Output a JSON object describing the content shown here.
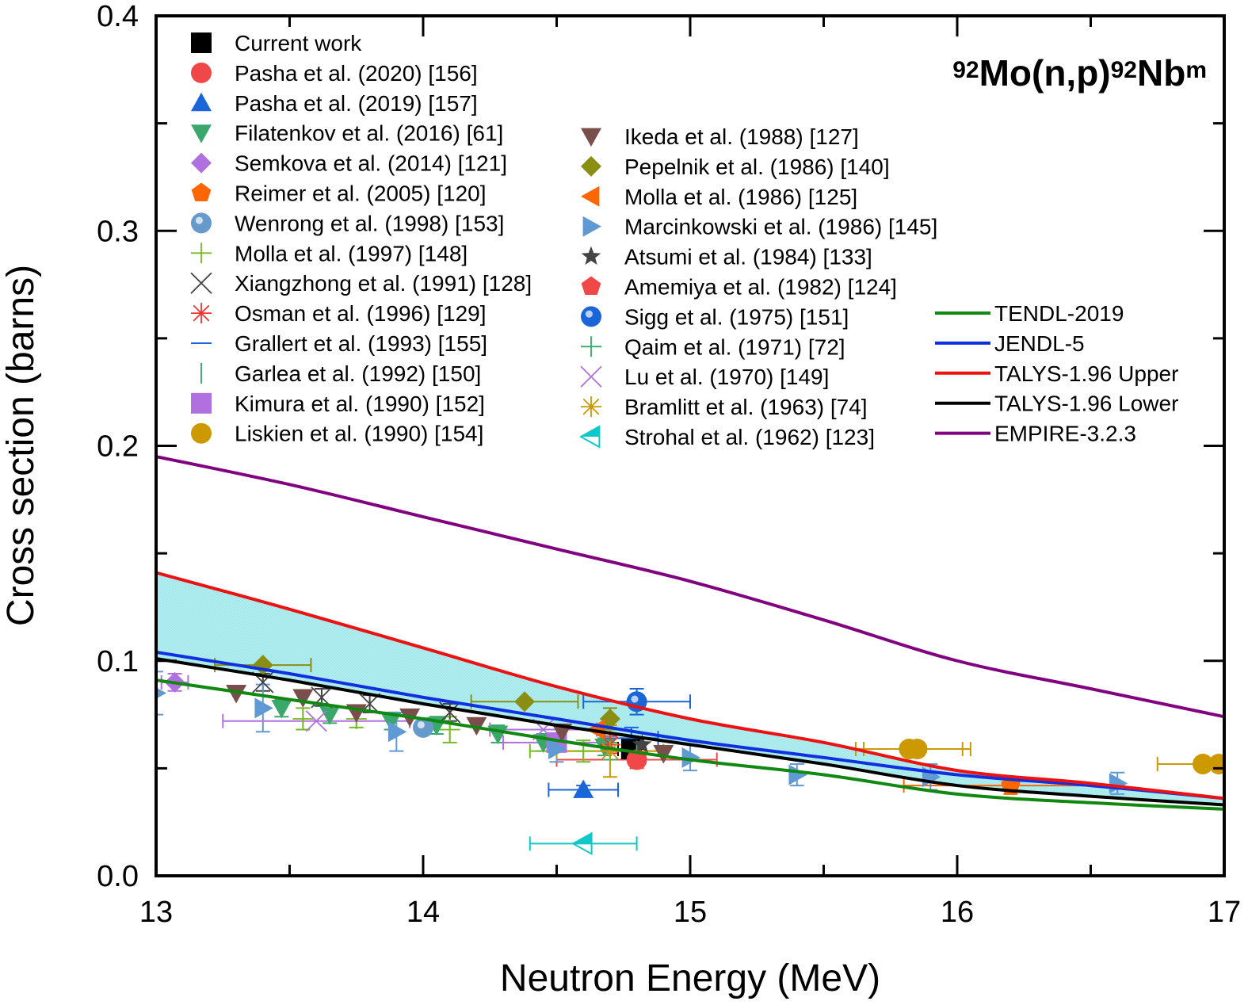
{
  "chart_data": {
    "type": "scatter",
    "title": "92Mo(n,p)92Nbm",
    "title_parts": [
      {
        "text": "92",
        "sup": true
      },
      {
        "text": "Mo(n,p)",
        "sup": false
      },
      {
        "text": "92",
        "sup": true
      },
      {
        "text": "Nb",
        "sup": false
      },
      {
        "text": "m",
        "sup": true
      }
    ],
    "xlabel": "Neutron Energy (MeV)",
    "ylabel": "Cross section (barns)",
    "xlim": [
      13,
      17
    ],
    "ylim": [
      0.0,
      0.4
    ],
    "xticks": [
      13,
      14,
      15,
      16,
      17
    ],
    "xtick_labels": [
      "13",
      "14",
      "15",
      "16",
      "17"
    ],
    "yticks": [
      0.0,
      0.1,
      0.2,
      0.3,
      0.4
    ],
    "ytick_labels": [
      "0.0",
      "0.1",
      "0.2",
      "0.3",
      "0.4"
    ],
    "grid": false,
    "legend_placement": "top-left (experimental), right (evaluations)",
    "band": {
      "name": "TALYS-1.96 uncertainty band",
      "lower_series": "TALYS-1.96 Lower",
      "upper_series": "TALYS-1.96 Upper",
      "color": "#aeeef0"
    },
    "curves": [
      {
        "name": "TENDL-2019",
        "color": "#118811",
        "x": [
          13,
          13.5,
          14,
          14.5,
          15,
          15.5,
          16,
          16.5,
          17
        ],
        "y": [
          0.091,
          0.082,
          0.073,
          0.063,
          0.054,
          0.047,
          0.038,
          0.034,
          0.031
        ]
      },
      {
        "name": "JENDL-5",
        "color": "#1030e0",
        "x": [
          13,
          13.5,
          14,
          14.5,
          15,
          15.5,
          16,
          16.5,
          17
        ],
        "y": [
          0.104,
          0.094,
          0.083,
          0.073,
          0.063,
          0.055,
          0.047,
          0.042,
          0.036
        ]
      },
      {
        "name": "TALYS-1.96 Upper",
        "color": "#ee1111",
        "x": [
          13,
          13.5,
          14,
          14.5,
          15,
          15.5,
          16,
          16.5,
          17
        ],
        "y": [
          0.141,
          0.124,
          0.106,
          0.088,
          0.073,
          0.062,
          0.049,
          0.043,
          0.036
        ]
      },
      {
        "name": "TALYS-1.96 Lower",
        "color": "#000000",
        "x": [
          13,
          13.5,
          14,
          14.5,
          15,
          15.5,
          16,
          16.5,
          17
        ],
        "y": [
          0.101,
          0.091,
          0.08,
          0.07,
          0.061,
          0.052,
          0.042,
          0.037,
          0.033
        ]
      },
      {
        "name": "EMPIRE-3.2.3",
        "color": "#800080",
        "x": [
          13,
          13.5,
          14,
          14.5,
          15,
          15.5,
          16,
          16.5,
          17
        ],
        "y": [
          0.195,
          0.182,
          0.167,
          0.152,
          0.137,
          0.119,
          0.1,
          0.087,
          0.074
        ]
      }
    ],
    "series": [
      {
        "name": "Current work",
        "marker": "square",
        "color": "#000000",
        "points": [
          {
            "x": 14.78,
            "y": 0.059,
            "xerr": 0.05,
            "yerr": 0.004
          }
        ]
      },
      {
        "name": "Pasha et al. (2020) [156]",
        "marker": "circle",
        "color": "#f04848",
        "points": [
          {
            "x": 14.8,
            "y": 0.054,
            "xerr": 0.3,
            "yerr": 0.004
          }
        ]
      },
      {
        "name": "Pasha et al. (2019) [157]",
        "marker": "triangle-up",
        "color": "#1a66d9",
        "points": [
          {
            "x": 14.6,
            "y": 0.04,
            "xerr": 0.13,
            "yerr": 0.002
          }
        ]
      },
      {
        "name": "Filatenkov et al. (2016) [61]",
        "marker": "triangle-down",
        "color": "#3aa86a",
        "points": [
          {
            "x": 13.47,
            "y": 0.078,
            "xerr": 0.0,
            "yerr": 0.004
          },
          {
            "x": 13.65,
            "y": 0.075,
            "xerr": 0.0,
            "yerr": 0.004
          },
          {
            "x": 13.88,
            "y": 0.072,
            "xerr": 0.0,
            "yerr": 0.004
          },
          {
            "x": 14.05,
            "y": 0.07,
            "xerr": 0.0,
            "yerr": 0.004
          },
          {
            "x": 14.28,
            "y": 0.066,
            "xerr": 0.0,
            "yerr": 0.004
          },
          {
            "x": 14.45,
            "y": 0.062,
            "xerr": 0.0,
            "yerr": 0.004
          },
          {
            "x": 14.68,
            "y": 0.06,
            "xerr": 0.0,
            "yerr": 0.004
          }
        ]
      },
      {
        "name": "Semkova et al. (2014) [121]",
        "marker": "diamond",
        "color": "#b070e0",
        "points": [
          {
            "x": 13.07,
            "y": 0.09,
            "xerr": 0.05,
            "yerr": 0.004
          }
        ]
      },
      {
        "name": "Reimer et al. (2005) [120]",
        "marker": "pentagon",
        "color": "#ff6600",
        "points": [
          {
            "x": 16.2,
            "y": 0.042,
            "xerr": 0.4,
            "yerr": 0.004
          }
        ]
      },
      {
        "name": "Wenrong et al. (1998) [153]",
        "marker": "sphere",
        "color": "#6699cc",
        "points": [
          {
            "x": 14.0,
            "y": 0.069,
            "xerr": 0.0,
            "yerr": 0.0
          }
        ]
      },
      {
        "name": "Molla et al. (1997) [148]",
        "marker": "plus",
        "color": "#77bb22",
        "points": [
          {
            "x": 13.55,
            "y": 0.073,
            "xerr": 0.0,
            "yerr": 0.005
          },
          {
            "x": 13.75,
            "y": 0.073,
            "xerr": 0.0,
            "yerr": 0.004
          },
          {
            "x": 14.1,
            "y": 0.068,
            "xerr": 0.0,
            "yerr": 0.006
          },
          {
            "x": 14.6,
            "y": 0.058,
            "xerr": 0.2,
            "yerr": 0.005
          }
        ]
      },
      {
        "name": "Xiangzhong et al. (1991) [128]",
        "marker": "x",
        "color": "#444444",
        "points": [
          {
            "x": 13.4,
            "y": 0.09,
            "xerr": 0.0,
            "yerr": 0.004
          },
          {
            "x": 13.62,
            "y": 0.083,
            "xerr": 0.0,
            "yerr": 0.004
          },
          {
            "x": 13.8,
            "y": 0.08,
            "xerr": 0.0,
            "yerr": 0.004
          },
          {
            "x": 14.1,
            "y": 0.076,
            "xerr": 0.0,
            "yerr": 0.004
          }
        ]
      },
      {
        "name": "Osman et al. (1996) [129]",
        "marker": "asterisk",
        "color": "#ee3333",
        "points": [
          {
            "x": 14.7,
            "y": 0.061,
            "xerr": 0.0,
            "yerr": 0.004
          }
        ]
      },
      {
        "name": "Grallert et al. (1993) [155]",
        "marker": "hline",
        "color": "#1a66d9",
        "points": [
          {
            "x": 14.78,
            "y": 0.064,
            "xerr": 0.1,
            "yerr": 0.005
          }
        ]
      },
      {
        "name": "Garlea et al. (1992) [150]",
        "marker": "vline",
        "color": "#44aa77",
        "points": [
          {
            "x": 14.8,
            "y": 0.058,
            "xerr": 0.1,
            "yerr": 0.004
          }
        ]
      },
      {
        "name": "Kimura et al. (1990) [152]",
        "marker": "square",
        "color": "#b070e0",
        "points": [
          {
            "x": 14.5,
            "y": 0.062,
            "xerr": 0.2,
            "yerr": 0.003
          }
        ]
      },
      {
        "name": "Liskien et al. (1990) [154]",
        "marker": "circle",
        "color": "#cc9900",
        "points": [
          {
            "x": 15.82,
            "y": 0.059,
            "xerr": 0.2,
            "yerr": 0.0
          },
          {
            "x": 15.85,
            "y": 0.059,
            "xerr": 0.2,
            "yerr": 0.0
          },
          {
            "x": 16.92,
            "y": 0.052,
            "xerr": 0.17,
            "yerr": 0.0
          },
          {
            "x": 16.98,
            "y": 0.052,
            "xerr": 0.0,
            "yerr": 0.0
          }
        ]
      },
      {
        "name": "Ikeda et al. (1988) [127]",
        "marker": "triangle-down",
        "color": "#7a4e4a",
        "points": [
          {
            "x": 13.3,
            "y": 0.085,
            "xerr": 0.0,
            "yerr": 0.0
          },
          {
            "x": 13.55,
            "y": 0.083,
            "xerr": 0.0,
            "yerr": 0.0
          },
          {
            "x": 13.75,
            "y": 0.076,
            "xerr": 0.0,
            "yerr": 0.0
          },
          {
            "x": 13.95,
            "y": 0.074,
            "xerr": 0.0,
            "yerr": 0.0
          },
          {
            "x": 14.2,
            "y": 0.07,
            "xerr": 0.0,
            "yerr": 0.0
          },
          {
            "x": 14.52,
            "y": 0.067,
            "xerr": 0.0,
            "yerr": 0.0
          },
          {
            "x": 14.9,
            "y": 0.057,
            "xerr": 0.0,
            "yerr": 0.0
          }
        ]
      },
      {
        "name": "Pepelnik et al. (1986) [140]",
        "marker": "diamond",
        "color": "#8a8f14",
        "points": [
          {
            "x": 13.4,
            "y": 0.098,
            "xerr": 0.18,
            "yerr": 0.0
          },
          {
            "x": 14.38,
            "y": 0.081,
            "xerr": 0.2,
            "yerr": 0.0
          },
          {
            "x": 14.7,
            "y": 0.073,
            "xerr": 0.0,
            "yerr": 0.005
          }
        ]
      },
      {
        "name": "Molla et al. (1986) [125]",
        "marker": "triangle-left",
        "color": "#ff6600",
        "points": [
          {
            "x": 14.65,
            "y": 0.068,
            "xerr": 0.0,
            "yerr": 0.0
          }
        ]
      },
      {
        "name": "Marcinkowski et al. (1986) [145]",
        "marker": "triangle-right",
        "color": "#5f9ad4",
        "points": [
          {
            "x": 13.0,
            "y": 0.085,
            "xerr": 0.0,
            "yerr": 0.01
          },
          {
            "x": 13.4,
            "y": 0.078,
            "xerr": 0.0,
            "yerr": 0.011
          },
          {
            "x": 13.9,
            "y": 0.067,
            "xerr": 0.0,
            "yerr": 0.009
          },
          {
            "x": 14.5,
            "y": 0.059,
            "xerr": 0.0,
            "yerr": 0.006
          },
          {
            "x": 15.0,
            "y": 0.055,
            "xerr": 0.0,
            "yerr": 0.006
          },
          {
            "x": 15.4,
            "y": 0.047,
            "xerr": 0.0,
            "yerr": 0.005
          },
          {
            "x": 15.9,
            "y": 0.046,
            "xerr": 0.0,
            "yerr": 0.006
          },
          {
            "x": 16.6,
            "y": 0.043,
            "xerr": 0.0,
            "yerr": 0.005
          }
        ]
      },
      {
        "name": "Atsumi et al. (1984) [133]",
        "marker": "star",
        "color": "#444444",
        "points": [
          {
            "x": 14.82,
            "y": 0.061,
            "xerr": 0.0,
            "yerr": 0.0
          }
        ]
      },
      {
        "name": "Amemiya et al. (1982) [124]",
        "marker": "pentagon",
        "color": "#f04848",
        "points": [
          {
            "x": 14.8,
            "y": 0.054,
            "xerr": 0.0,
            "yerr": 0.0
          }
        ]
      },
      {
        "name": "Sigg et al. (1975) [151]",
        "marker": "sphere",
        "color": "#1a66d9",
        "points": [
          {
            "x": 14.8,
            "y": 0.081,
            "xerr": 0.2,
            "yerr": 0.006
          }
        ]
      },
      {
        "name": "Qaim et al. (1971) [72]",
        "marker": "plus",
        "color": "#33aa66",
        "points": [
          {
            "x": 14.7,
            "y": 0.058,
            "xerr": 0.0,
            "yerr": 0.004
          }
        ]
      },
      {
        "name": "Lu et al. (1970) [149]",
        "marker": "x",
        "color": "#b070e0",
        "points": [
          {
            "x": 13.6,
            "y": 0.072,
            "xerr": 0.35,
            "yerr": 0.0
          },
          {
            "x": 14.45,
            "y": 0.068,
            "xerr": 0.2,
            "yerr": 0.0
          }
        ]
      },
      {
        "name": "Bramlitt et al. (1963) [74]",
        "marker": "asterisk",
        "color": "#cc9900",
        "points": [
          {
            "x": 14.7,
            "y": 0.058,
            "xerr": 0.2,
            "yerr": 0.012
          }
        ]
      },
      {
        "name": "Strohal  et al. (1962) [123]",
        "marker": "triangle-left-open",
        "color": "#11c8c8",
        "points": [
          {
            "x": 14.6,
            "y": 0.015,
            "xerr": 0.2,
            "yerr": 0.0
          }
        ]
      }
    ]
  },
  "legend": {
    "column1": [
      "Current work",
      "Pasha et al. (2020) [156]",
      "Pasha et al. (2019) [157]",
      "Filatenkov et al. (2016) [61]",
      "Semkova et al. (2014) [121]",
      "Reimer et al. (2005) [120]",
      "Wenrong et al. (1998) [153]",
      "Molla et al. (1997) [148]",
      "Xiangzhong et al. (1991) [128]",
      "Osman et al. (1996) [129]",
      "Grallert et al. (1993) [155]",
      "Garlea et al. (1992) [150]",
      "Kimura et al. (1990) [152]",
      "Liskien et al. (1990) [154]"
    ],
    "column2": [
      "Ikeda et al. (1988) [127]",
      "Pepelnik et al. (1986) [140]",
      "Molla et al. (1986) [125]",
      "Marcinkowski et al. (1986) [145]",
      "Atsumi et al. (1984) [133]",
      "Amemiya et al. (1982) [124]",
      "Sigg et al. (1975) [151]",
      "Qaim et al. (1971) [72]",
      "Lu et al. (1970) [149]",
      "Bramlitt et al. (1963) [74]",
      "Strohal  et al. (1962) [123]"
    ],
    "column3": [
      "TENDL-2019",
      "JENDL-5",
      "TALYS-1.96 Upper",
      "TALYS-1.96 Lower",
      "EMPIRE-3.2.3"
    ]
  }
}
